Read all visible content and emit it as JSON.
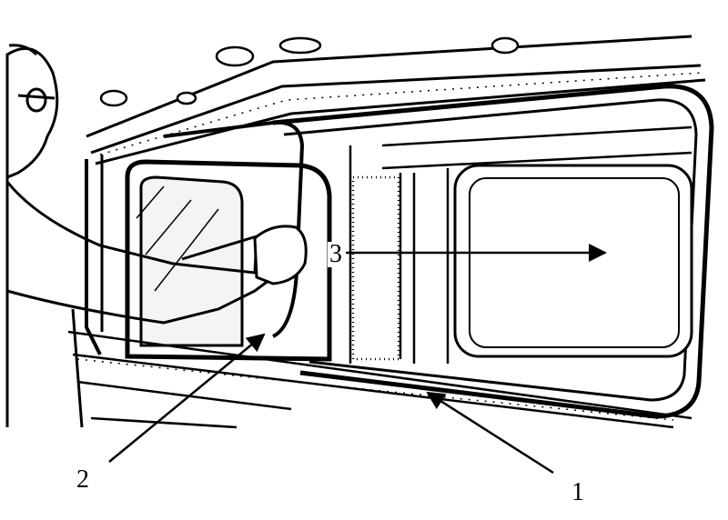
{
  "figure": {
    "callouts": [
      {
        "id": "1",
        "label": "1"
      },
      {
        "id": "2",
        "label": "2"
      },
      {
        "id": "3",
        "label": "3"
      }
    ]
  },
  "colors": {
    "ink": "#000000",
    "paper": "#ffffff",
    "glass": "#f4f4f4"
  }
}
